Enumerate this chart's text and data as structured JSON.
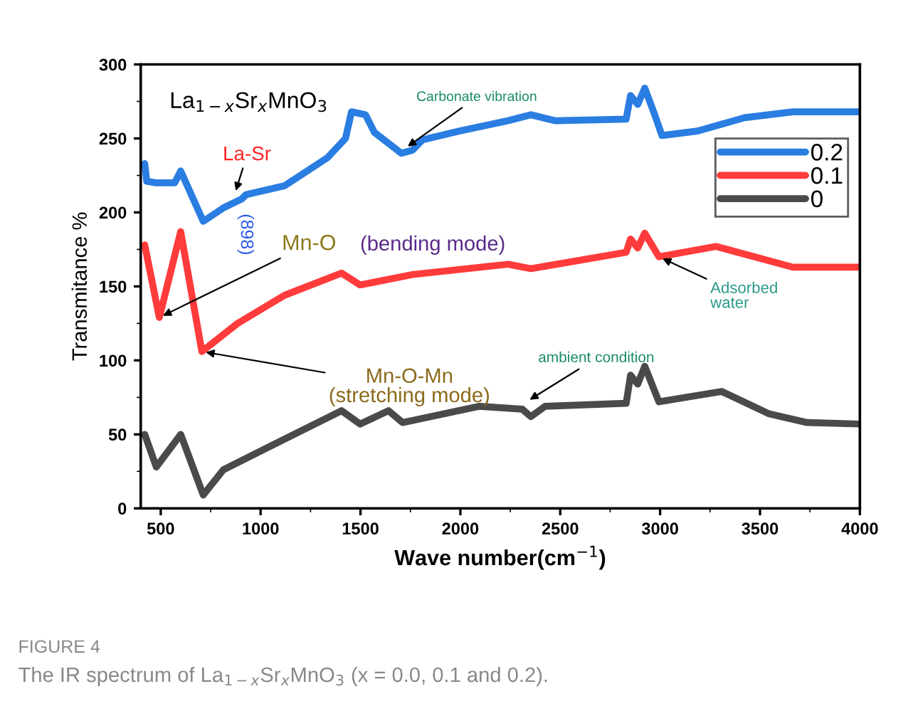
{
  "chart_data": {
    "type": "line",
    "title": "La$_{1−x}$Sr$_{x}$MnO$_{3}$",
    "xlabel": "Wave number(cm$^{−1}$)",
    "ylabel": "Transmitance %",
    "xlim": [
      400,
      4000
    ],
    "xticks": [
      500,
      1000,
      1500,
      2000,
      2500,
      3000,
      3500,
      4000
    ],
    "ylim": [
      0,
      300
    ],
    "yticks": [
      0,
      50,
      100,
      150,
      200,
      250,
      300
    ],
    "legend": "top right",
    "grid": false,
    "line_style": "solid",
    "marker": "none",
    "series": [
      {
        "name": "0.2",
        "color": "#2a7de1",
        "x": [
          420,
          430,
          478,
          570,
          600,
          713,
          813,
          905,
          927,
          1120,
          1335,
          1425,
          1455,
          1525,
          1570,
          1705,
          1760,
          1810,
          1997,
          2240,
          2353,
          2474,
          2830,
          2852,
          2888,
          2923,
          2973,
          3009,
          3187,
          3422,
          3664,
          3992
        ],
        "values": [
          233,
          221,
          220,
          220,
          228,
          194,
          203,
          209,
          212,
          218,
          237,
          250,
          268,
          266,
          254,
          240,
          242,
          249,
          255,
          262,
          266,
          262,
          263,
          279,
          273,
          284,
          266,
          252,
          255,
          264,
          268,
          268
        ]
      },
      {
        "name": "0.1",
        "color": "#ff3b3b",
        "x": [
          420,
          493,
          600,
          706,
          885,
          1120,
          1405,
          1498,
          1761,
          2239,
          2353,
          2830,
          2852,
          2888,
          2923,
          2994,
          3280,
          3664,
          3992
        ],
        "values": [
          178,
          129,
          187,
          106,
          125,
          144,
          159,
          151,
          158,
          165,
          162,
          173,
          182,
          176,
          186,
          170,
          177,
          163,
          163
        ]
      },
      {
        "name": "0",
        "color": "#4a4a4a",
        "x": [
          420,
          478,
          600,
          713,
          813,
          1049,
          1405,
          1498,
          1640,
          1711,
          2096,
          2310,
          2353,
          2424,
          2830,
          2852,
          2888,
          2923,
          2994,
          3308,
          3543,
          3736,
          4000
        ],
        "values": [
          50,
          28,
          50,
          9,
          26,
          42,
          66,
          57,
          66,
          58,
          69,
          67,
          62,
          69,
          71,
          90,
          84,
          96,
          72,
          79,
          64,
          58,
          57
        ]
      }
    ],
    "annotations": [
      {
        "text": "Carbonate vibration",
        "x": 1720,
        "y": 243
      },
      {
        "text": "La-Sr",
        "x": 870,
        "y": 212
      },
      "(898)",
      {
        "text": "Mn-O",
        "x": 493,
        "y": 129
      },
      "(bending mode)",
      {
        "text": "Mn-O-Mn\n(stretching mode)",
        "x": 706,
        "y": 106
      },
      {
        "text": "Adsorbed\nwater",
        "x": 2994,
        "y": 170
      },
      {
        "text": "ambient condition",
        "x": 2330,
        "y": 72
      },
      "FIGURE 4",
      "The IR spectrum of La$_{1−x}$Sr$_{x}$MnO$_{3}$ (x = 0.0, 0.1 and 0.2)."
    ]
  }
}
